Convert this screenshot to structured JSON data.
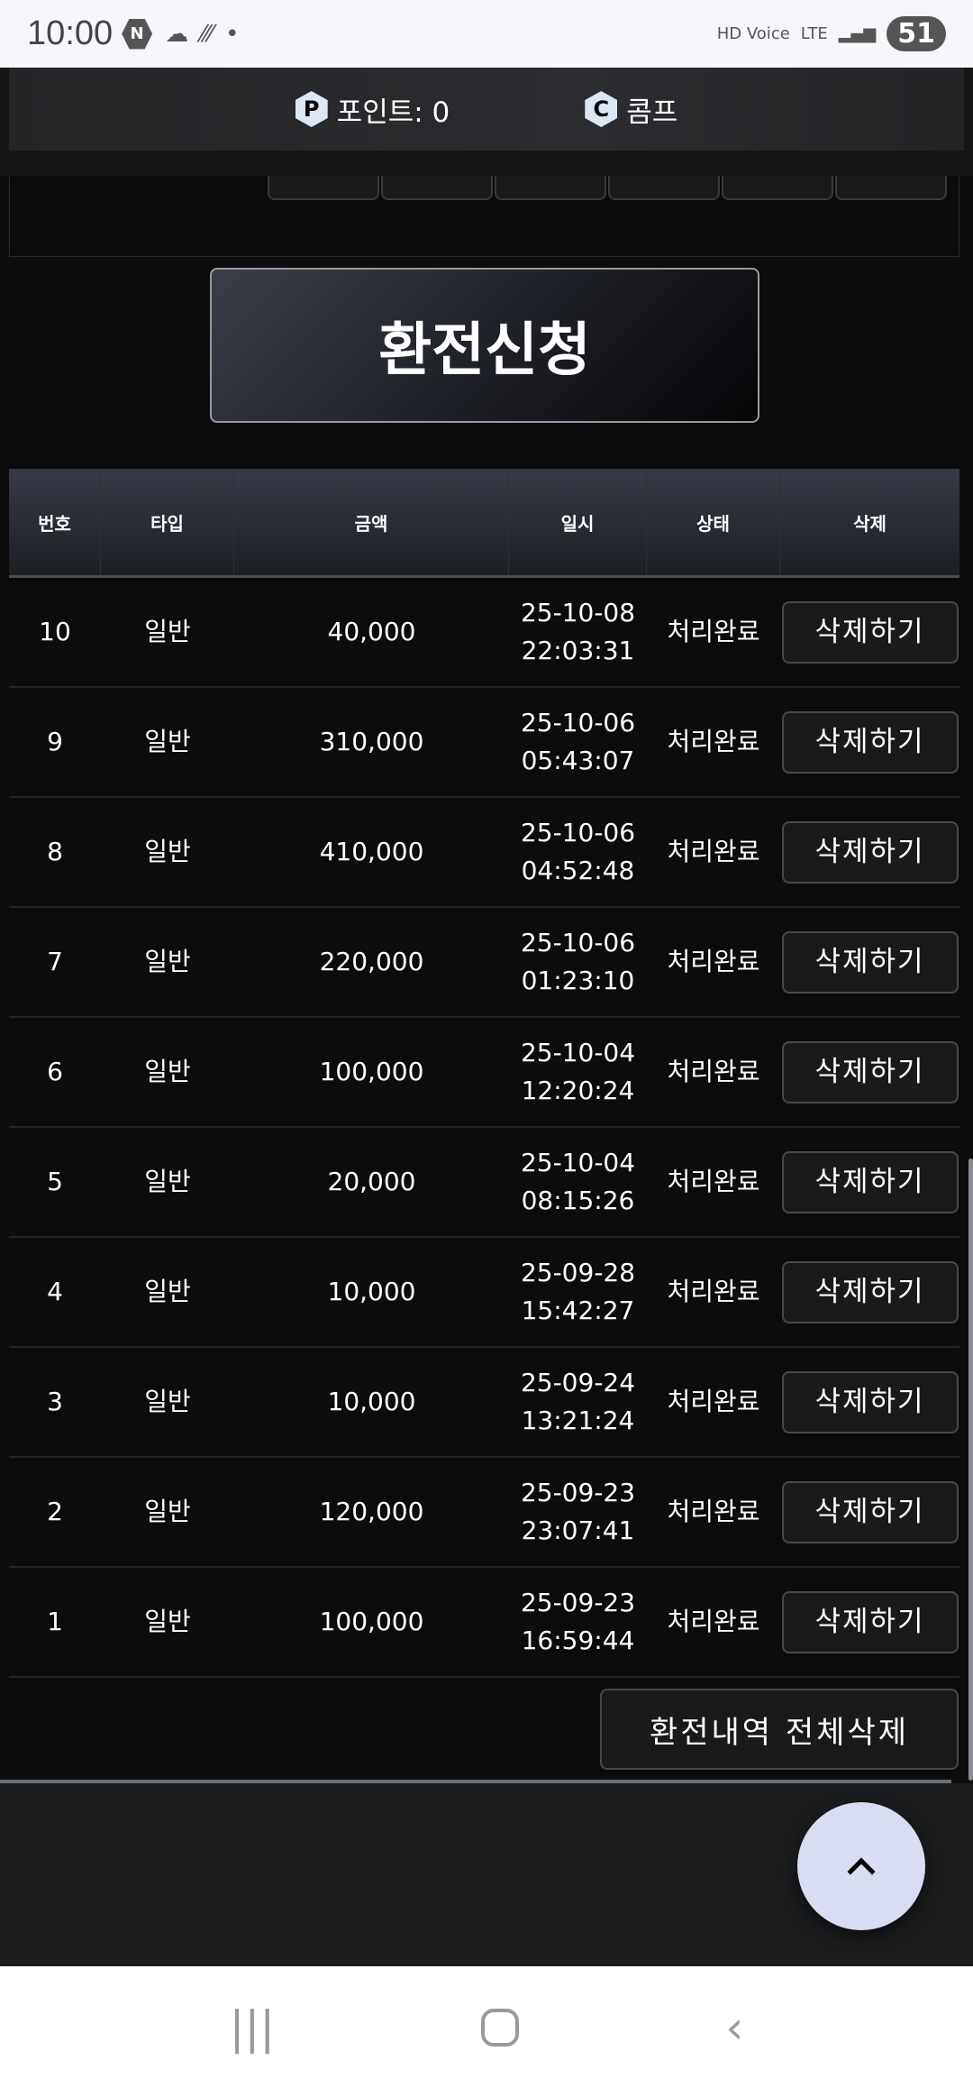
{
  "status_bar": {
    "time": "10:00",
    "battery": "51",
    "network": "LTE",
    "voice": "HD Voice"
  },
  "header": {
    "points_label": "포인트: 0",
    "comp_label": "콤프",
    "points_icon": "P",
    "comp_icon": "C"
  },
  "apply_button": "환전신청",
  "table": {
    "headers": [
      "번호",
      "타입",
      "금액",
      "일시",
      "상태",
      "삭제"
    ],
    "rows": [
      {
        "no": "10",
        "type": "일반",
        "amount": "40,000",
        "date": "25-10-08",
        "time": "22:03:31",
        "status": "처리완료",
        "action": "삭제하기"
      },
      {
        "no": "9",
        "type": "일반",
        "amount": "310,000",
        "date": "25-10-06",
        "time": "05:43:07",
        "status": "처리완료",
        "action": "삭제하기"
      },
      {
        "no": "8",
        "type": "일반",
        "amount": "410,000",
        "date": "25-10-06",
        "time": "04:52:48",
        "status": "처리완료",
        "action": "삭제하기"
      },
      {
        "no": "7",
        "type": "일반",
        "amount": "220,000",
        "date": "25-10-06",
        "time": "01:23:10",
        "status": "처리완료",
        "action": "삭제하기"
      },
      {
        "no": "6",
        "type": "일반",
        "amount": "100,000",
        "date": "25-10-04",
        "time": "12:20:24",
        "status": "처리완료",
        "action": "삭제하기"
      },
      {
        "no": "5",
        "type": "일반",
        "amount": "20,000",
        "date": "25-10-04",
        "time": "08:15:26",
        "status": "처리완료",
        "action": "삭제하기"
      },
      {
        "no": "4",
        "type": "일반",
        "amount": "10,000",
        "date": "25-09-28",
        "time": "15:42:27",
        "status": "처리완료",
        "action": "삭제하기"
      },
      {
        "no": "3",
        "type": "일반",
        "amount": "10,000",
        "date": "25-09-24",
        "time": "13:21:24",
        "status": "처리완료",
        "action": "삭제하기"
      },
      {
        "no": "2",
        "type": "일반",
        "amount": "120,000",
        "date": "25-09-23",
        "time": "23:07:41",
        "status": "처리완료",
        "action": "삭제하기"
      },
      {
        "no": "1",
        "type": "일반",
        "amount": "100,000",
        "date": "25-09-23",
        "time": "16:59:44",
        "status": "처리완료",
        "action": "삭제하기"
      }
    ]
  },
  "delete_all_button": "환전내역 전체삭제",
  "colors": {
    "fab": "#d9ddf1",
    "background": "#0c0c0d"
  }
}
